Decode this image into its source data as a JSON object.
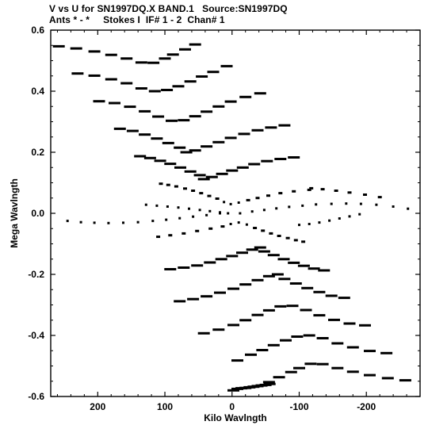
{
  "header": {
    "line1": "V vs U for SN1997DQ.X BAND.1   Source:SN1997DQ",
    "line2": "Ants * - *     Stokes I  IF# 1 - 2  Chan# 1"
  },
  "chart_data": {
    "type": "scatter",
    "xlabel": "Kilo Wavlngth",
    "ylabel": "Mega Wavlngth",
    "xlim": [
      270,
      -280
    ],
    "ylim": [
      -0.6,
      0.6
    ],
    "x_unit": "kilo-wavelength",
    "y_unit": "mega-wavelength",
    "x_ticks": [
      {
        "value": 200,
        "label": "200"
      },
      {
        "value": 100,
        "label": "100"
      },
      {
        "value": 0,
        "label": "0"
      },
      {
        "value": -100,
        "label": "-100"
      },
      {
        "value": -200,
        "label": "-200"
      }
    ],
    "y_ticks": [
      {
        "value": 0.6,
        "label": "0.6"
      },
      {
        "value": 0.4,
        "label": "0.4"
      },
      {
        "value": 0.2,
        "label": "0.2"
      },
      {
        "value": 0.0,
        "label": "0.0"
      },
      {
        "value": -0.2,
        "label": "-0.2"
      },
      {
        "value": -0.4,
        "label": "-0.4"
      },
      {
        "value": -0.6,
        "label": "-0.6"
      }
    ],
    "grid": false,
    "marker": "short horizontal dash",
    "marker_color": "#000000",
    "tracks": [
      {
        "u": [
          258,
          232,
          205,
          180,
          157,
          135,
          117,
          100,
          88,
          70,
          55
        ],
        "v": [
          0.547,
          0.54,
          0.53,
          0.519,
          0.507,
          0.494,
          0.493,
          0.507,
          0.52,
          0.537,
          0.553
        ]
      },
      {
        "u": [
          230,
          205,
          180,
          157,
          135,
          115,
          97,
          80,
          62,
          45,
          28,
          8
        ],
        "v": [
          0.458,
          0.451,
          0.439,
          0.426,
          0.409,
          0.4,
          0.404,
          0.416,
          0.432,
          0.448,
          0.463,
          0.482
        ]
      },
      {
        "u": [
          198,
          175,
          152,
          130,
          110,
          90,
          72,
          55,
          38,
          20,
          2,
          -20,
          -42
        ],
        "v": [
          0.367,
          0.361,
          0.349,
          0.334,
          0.317,
          0.303,
          0.305,
          0.318,
          0.333,
          0.35,
          0.366,
          0.381,
          0.393
        ]
      },
      {
        "u": [
          167,
          148,
          130,
          112,
          95,
          78,
          68,
          55,
          38,
          20,
          2,
          -18,
          -38,
          -58,
          -78
        ],
        "v": [
          0.277,
          0.27,
          0.258,
          0.245,
          0.23,
          0.215,
          0.2,
          0.206,
          0.219,
          0.233,
          0.247,
          0.26,
          0.272,
          0.281,
          0.288
        ]
      },
      {
        "u": [
          137,
          122,
          107,
          92,
          77,
          62,
          48,
          42,
          30,
          15,
          0,
          -16,
          -33,
          -52,
          -72,
          -92
        ],
        "v": [
          0.187,
          0.181,
          0.172,
          0.162,
          0.15,
          0.137,
          0.125,
          0.112,
          0.119,
          0.129,
          0.14,
          0.15,
          0.161,
          0.171,
          0.178,
          0.183
        ]
      },
      {
        "u": [
          106,
          95,
          83,
          70,
          58,
          46,
          34,
          22,
          12,
          2,
          -10,
          -24,
          -38,
          -54,
          -72,
          -92,
          -115
        ],
        "v": [
          0.097,
          0.093,
          0.088,
          0.081,
          0.074,
          0.066,
          0.057,
          0.048,
          0.037,
          0.03,
          0.035,
          0.043,
          0.05,
          0.058,
          0.066,
          0.072,
          0.077
        ]
      },
      {
        "u": [
          128,
          112,
          96,
          80,
          64,
          48,
          33,
          18,
          6
        ],
        "v": [
          0.028,
          0.025,
          0.022,
          0.019,
          0.015,
          0.011,
          0.007,
          0.003,
          0.0
        ]
      },
      {
        "u": [
          -118,
          -135,
          -155,
          -175,
          -198,
          -220
        ],
        "v": [
          0.082,
          0.079,
          0.074,
          0.068,
          0.061,
          0.053
        ]
      },
      {
        "u": [
          -12,
          -30,
          -48,
          -66,
          -85,
          -105,
          -125,
          -148,
          -170,
          -192,
          -215,
          -240,
          -262
        ],
        "v": [
          0.0,
          0.006,
          0.011,
          0.016,
          0.021,
          0.025,
          0.029,
          0.031,
          0.032,
          0.031,
          0.028,
          0.022,
          0.015
        ]
      },
      {
        "u": [
          245,
          225,
          205,
          184,
          162,
          140,
          118,
          98,
          78,
          58,
          38,
          18
        ],
        "v": [
          -0.025,
          -0.029,
          -0.031,
          -0.032,
          -0.031,
          -0.029,
          -0.025,
          -0.021,
          -0.016,
          -0.011,
          -0.006,
          0.0
        ]
      },
      {
        "u": [
          -100,
          -115,
          -130,
          -145,
          -160,
          -175,
          -190
        ],
        "v": [
          -0.038,
          -0.035,
          -0.03,
          -0.024,
          -0.017,
          -0.01,
          -0.003
        ]
      },
      {
        "u": [
          110,
          92,
          72,
          52,
          32,
          14,
          2,
          -10,
          -22,
          -34,
          -46,
          -58,
          -70,
          -83,
          -95,
          -106
        ],
        "v": [
          -0.077,
          -0.072,
          -0.066,
          -0.058,
          -0.05,
          -0.043,
          -0.035,
          -0.03,
          -0.037,
          -0.048,
          -0.057,
          -0.066,
          -0.074,
          -0.081,
          -0.088,
          -0.093
        ]
      },
      {
        "u": [
          92,
          72,
          52,
          33,
          16,
          0,
          -15,
          -30,
          -42,
          -48,
          -62,
          -77,
          -92,
          -107,
          -122,
          -137
        ],
        "v": [
          -0.183,
          -0.178,
          -0.171,
          -0.161,
          -0.15,
          -0.14,
          -0.129,
          -0.119,
          -0.112,
          -0.125,
          -0.137,
          -0.15,
          -0.162,
          -0.172,
          -0.181,
          -0.187
        ]
      },
      {
        "u": [
          78,
          58,
          38,
          18,
          -2,
          -20,
          -38,
          -55,
          -68,
          -78,
          -95,
          -112,
          -130,
          -148,
          -167
        ],
        "v": [
          -0.288,
          -0.281,
          -0.272,
          -0.26,
          -0.247,
          -0.233,
          -0.219,
          -0.206,
          -0.2,
          -0.215,
          -0.23,
          -0.245,
          -0.258,
          -0.27,
          -0.277
        ]
      },
      {
        "u": [
          42,
          20,
          -2,
          -20,
          -38,
          -55,
          -72,
          -90,
          -110,
          -130,
          -152,
          -175,
          -198
        ],
        "v": [
          -0.393,
          -0.381,
          -0.366,
          -0.35,
          -0.333,
          -0.318,
          -0.305,
          -0.303,
          -0.317,
          -0.334,
          -0.349,
          -0.361,
          -0.367
        ]
      },
      {
        "u": [
          -8,
          -28,
          -45,
          -62,
          -80,
          -97,
          -115,
          -135,
          -157,
          -180,
          -205,
          -230
        ],
        "v": [
          -0.482,
          -0.463,
          -0.448,
          -0.432,
          -0.416,
          -0.404,
          -0.4,
          -0.409,
          -0.426,
          -0.439,
          -0.451,
          -0.458
        ]
      },
      {
        "u": [
          -55,
          -70,
          -88,
          -100,
          -117,
          -135,
          -157,
          -180,
          -205,
          -232,
          -258
        ],
        "v": [
          -0.553,
          -0.537,
          -0.52,
          -0.507,
          -0.493,
          -0.494,
          -0.507,
          -0.519,
          -0.53,
          -0.54,
          -0.547
        ]
      },
      {
        "u": [
          -2,
          -8,
          -14,
          -20,
          -26,
          -32,
          -38,
          -44,
          -50,
          -56
        ],
        "v": [
          -0.58,
          -0.575,
          -0.573,
          -0.572,
          -0.57,
          -0.568,
          -0.566,
          -0.564,
          -0.562,
          -0.559
        ]
      }
    ]
  }
}
